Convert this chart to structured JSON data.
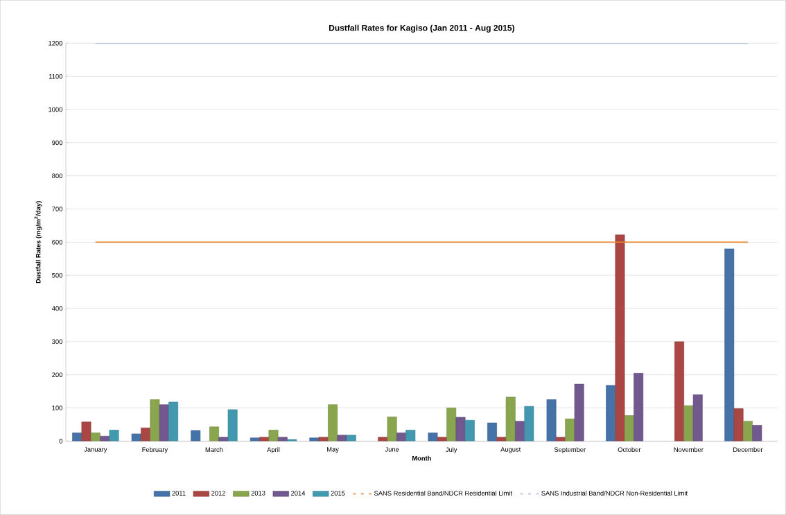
{
  "chart_data": {
    "type": "bar",
    "title": "Dustfall Rates for Kagiso (Jan 2011 - Aug 2015)",
    "xlabel": "Month",
    "ylabel": "Dustfall Rates (mg/m$^{2}$/day)",
    "categories": [
      "January",
      "February",
      "March",
      "April",
      "May",
      "June",
      "July",
      "August",
      "September",
      "October",
      "November",
      "December"
    ],
    "series": [
      {
        "name": "2011",
        "color": "#4572a7",
        "values": [
          25,
          22,
          32,
          10,
          10,
          null,
          25,
          55,
          125,
          168,
          null,
          580
        ]
      },
      {
        "name": "2012",
        "color": "#aa4643",
        "values": [
          58,
          40,
          null,
          12,
          12,
          12,
          12,
          12,
          12,
          622,
          300,
          98
        ]
      },
      {
        "name": "2013",
        "color": "#89a54e",
        "values": [
          25,
          125,
          43,
          33,
          110,
          73,
          100,
          133,
          67,
          77,
          107,
          60
        ]
      },
      {
        "name": "2014",
        "color": "#71588f",
        "values": [
          15,
          110,
          12,
          12,
          18,
          25,
          72,
          60,
          172,
          205,
          140,
          48
        ]
      },
      {
        "name": "2015",
        "color": "#4198af",
        "values": [
          33,
          118,
          95,
          5,
          18,
          33,
          63,
          105,
          null,
          null,
          null,
          null
        ]
      }
    ],
    "ref_lines": [
      {
        "axis": "y",
        "value": 600,
        "label": "SANS Residential Band/NDCR Residential Limit",
        "color": "#e8822a"
      },
      {
        "axis": "y",
        "value": 1200,
        "label": "SANS Industrial Band/NDCR Non-Residential Limit",
        "color": "#a6b9e0"
      }
    ],
    "ylim": [
      0,
      1200
    ],
    "yticks": [
      0,
      100,
      200,
      300,
      400,
      500,
      600,
      700,
      800,
      900,
      1000,
      1100,
      1200
    ],
    "grid": "y",
    "legend": "bottom"
  }
}
